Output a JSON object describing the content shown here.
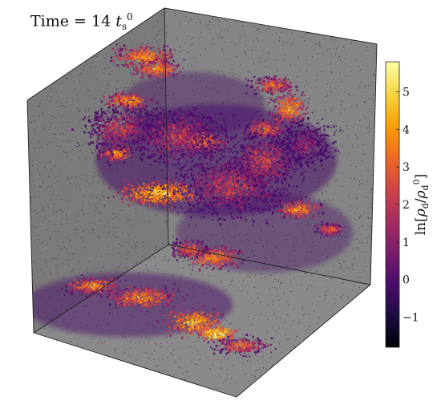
{
  "title": {
    "prefix": "Time = 14 ",
    "var": "t",
    "sub": "s",
    "sup": "0"
  },
  "colorbar": {
    "label": "ln[ρd/ρd0]",
    "ticks": [
      "5",
      "4",
      "3",
      "2",
      "1",
      "0",
      "−1"
    ],
    "tick_values": [
      5,
      4,
      3,
      2,
      1,
      0,
      -1
    ],
    "range": [
      -1.8,
      5.8
    ],
    "colormap": "inferno",
    "colors": [
      "#000004",
      "#1b0c41",
      "#4a0c6b",
      "#781c6d",
      "#a52c60",
      "#cf4446",
      "#ed6925",
      "#fb9b06",
      "#f7d13d",
      "#fcffa4"
    ]
  },
  "scene": {
    "background": "#7f7f7f",
    "face_colors": {
      "back": "#858585",
      "left": "#7b7b7b",
      "floor": "#8a8a8a"
    }
  }
}
